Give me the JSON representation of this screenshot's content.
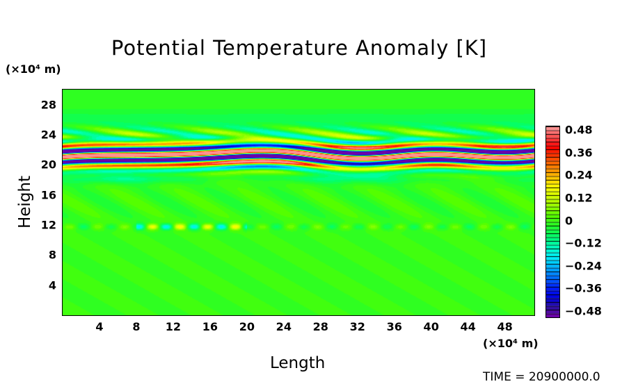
{
  "chart_data": {
    "type": "heatmap",
    "title": "Potential Temperature Anomaly [K]",
    "xlabel": "Length",
    "ylabel": "Height",
    "x_unit": "(×10⁴ m)",
    "y_unit": "(×10⁴ m)",
    "xlim": [
      0,
      51.2
    ],
    "ylim": [
      0,
      30
    ],
    "x_ticks": [
      4,
      8,
      12,
      16,
      20,
      24,
      28,
      32,
      36,
      40,
      44,
      48
    ],
    "x_tick_labels": [
      "4",
      "8",
      "12",
      "16",
      "20",
      "24",
      "28",
      "32",
      "36",
      "40",
      "44",
      "48"
    ],
    "y_ticks": [
      4,
      8,
      12,
      16,
      20,
      24,
      28
    ],
    "y_tick_labels": [
      "4",
      "8",
      "12",
      "16",
      "20",
      "24",
      "28"
    ],
    "colorbar": {
      "range": [
        -0.48,
        0.48
      ],
      "ticks": [
        0.48,
        0.36,
        0.24,
        0.12,
        0,
        -0.12,
        -0.24,
        -0.36,
        -0.48
      ],
      "tick_labels": [
        "0.48",
        "0.36",
        "0.24",
        "0.12",
        "0",
        "−0.12",
        "−0.24",
        "−0.36",
        "−0.48"
      ],
      "colors": [
        "#7a00aa",
        "#3010a0",
        "#0000e0",
        "#0020ff",
        "#0070ff",
        "#00b0ff",
        "#00f0ff",
        "#00ffc0",
        "#00ff70",
        "#20ff30",
        "#50ff00",
        "#90ff00",
        "#d0ff00",
        "#ffff00",
        "#ffc000",
        "#ff8000",
        "#ff4000",
        "#ff0000",
        "#ff5050",
        "#ffa0a0"
      ]
    },
    "field_description": "strong alternating anomaly bands between heights ~19 and ~24, weak anomalies elsewhere"
  },
  "footer": {
    "time": "TIME = 20900000.0"
  }
}
